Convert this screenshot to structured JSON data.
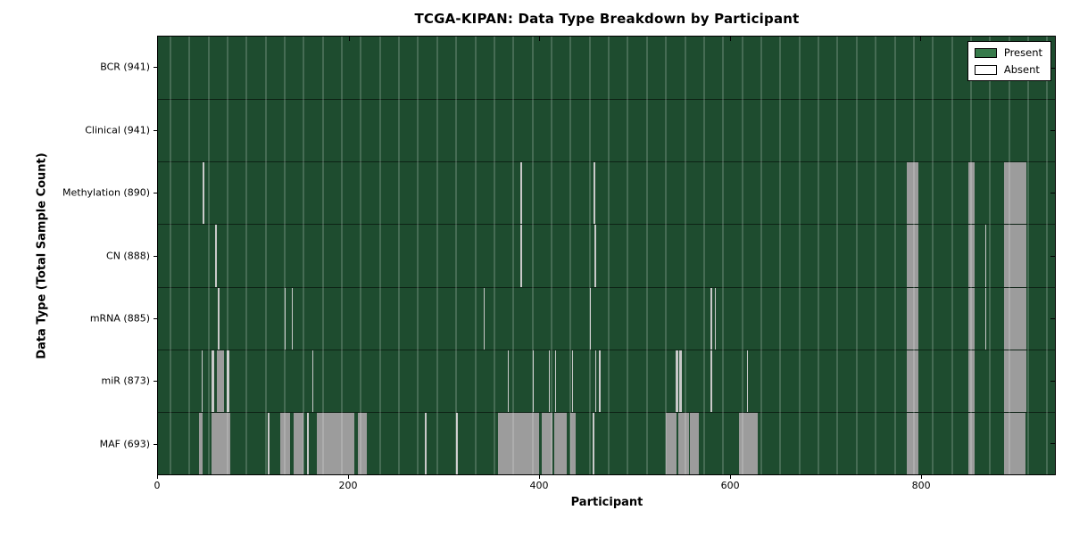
{
  "title": "TCGA-KIPAN: Data Type Breakdown by Participant",
  "x_axis": {
    "label": "Participant",
    "ticks": [
      0,
      200,
      400,
      600,
      800
    ]
  },
  "y_axis": {
    "label": "Data Type (Total Sample Count)"
  },
  "legend": {
    "items": [
      {
        "name": "present",
        "label": "Present",
        "color": "#377a4b"
      },
      {
        "name": "absent",
        "label": "Absent",
        "color": "#ffffff"
      }
    ]
  },
  "colors": {
    "present_fill": "#1e4c2f",
    "absent_band_fill": "#9c9c9c",
    "absent_thin_fill": "#c9c9c9",
    "gridline": "rgba(255,255,255,0.18)",
    "border": "#000000"
  },
  "chart_data": {
    "type": "heatmap",
    "title": "TCGA-KIPAN: Data Type Breakdown by Participant",
    "xlabel": "Participant",
    "ylabel": "Data Type (Total Sample Count)",
    "x_range": [
      0,
      941
    ],
    "x_tick_values": [
      0,
      200,
      400,
      600,
      800
    ],
    "grid_interval_participants": 20,
    "legend_position": "upper right",
    "cell_semantics": {
      "green": "Present",
      "white": "Absent"
    },
    "rows": [
      {
        "label": "BCR (941)",
        "data_type": "BCR",
        "total_samples": 941,
        "absent_ranges": []
      },
      {
        "label": "Clinical (941)",
        "data_type": "Clinical",
        "total_samples": 941,
        "absent_ranges": []
      },
      {
        "label": "Methylation (890)",
        "data_type": "Methylation",
        "total_samples": 890,
        "absent_ranges": [
          [
            47,
            2
          ],
          [
            380,
            2
          ],
          [
            457,
            2
          ],
          [
            786,
            12
          ],
          [
            850,
            7
          ],
          [
            888,
            23
          ]
        ]
      },
      {
        "label": "CN (888)",
        "data_type": "CN",
        "total_samples": 888,
        "absent_ranges": [
          [
            60,
            2
          ],
          [
            380,
            2
          ],
          [
            458,
            2
          ],
          [
            786,
            12
          ],
          [
            850,
            7
          ],
          [
            868,
            1
          ],
          [
            888,
            23
          ]
        ]
      },
      {
        "label": "mRNA (885)",
        "data_type": "mRNA",
        "total_samples": 885,
        "absent_ranges": [
          [
            63,
            2
          ],
          [
            133,
            1
          ],
          [
            140,
            1
          ],
          [
            342,
            1
          ],
          [
            453,
            1
          ],
          [
            580,
            1
          ],
          [
            584,
            1
          ],
          [
            786,
            12
          ],
          [
            850,
            7
          ],
          [
            868,
            1
          ],
          [
            888,
            23
          ]
        ]
      },
      {
        "label": "miR (873)",
        "data_type": "miR",
        "total_samples": 873,
        "absent_ranges": [
          [
            46,
            1
          ],
          [
            56,
            3
          ],
          [
            62,
            7
          ],
          [
            72,
            3
          ],
          [
            162,
            1
          ],
          [
            367,
            1
          ],
          [
            393,
            1
          ],
          [
            410,
            1
          ],
          [
            417,
            1
          ],
          [
            434,
            1
          ],
          [
            459,
            1
          ],
          [
            463,
            1
          ],
          [
            543,
            3
          ],
          [
            547,
            3
          ],
          [
            580,
            1
          ],
          [
            618,
            1
          ],
          [
            786,
            12
          ],
          [
            850,
            7
          ],
          [
            888,
            23
          ]
        ]
      },
      {
        "label": "MAF (693)",
        "data_type": "MAF",
        "total_samples": 693,
        "absent_ranges": [
          [
            43,
            4
          ],
          [
            56,
            20
          ],
          [
            115,
            2
          ],
          [
            128,
            11
          ],
          [
            142,
            11
          ],
          [
            156,
            2
          ],
          [
            167,
            39
          ],
          [
            210,
            9
          ],
          [
            280,
            2
          ],
          [
            313,
            2
          ],
          [
            357,
            43
          ],
          [
            403,
            11
          ],
          [
            416,
            13
          ],
          [
            433,
            5
          ],
          [
            456,
            2
          ],
          [
            533,
            11
          ],
          [
            546,
            11
          ],
          [
            558,
            9
          ],
          [
            610,
            19
          ],
          [
            786,
            12
          ],
          [
            850,
            7
          ],
          [
            888,
            22
          ]
        ]
      }
    ]
  }
}
